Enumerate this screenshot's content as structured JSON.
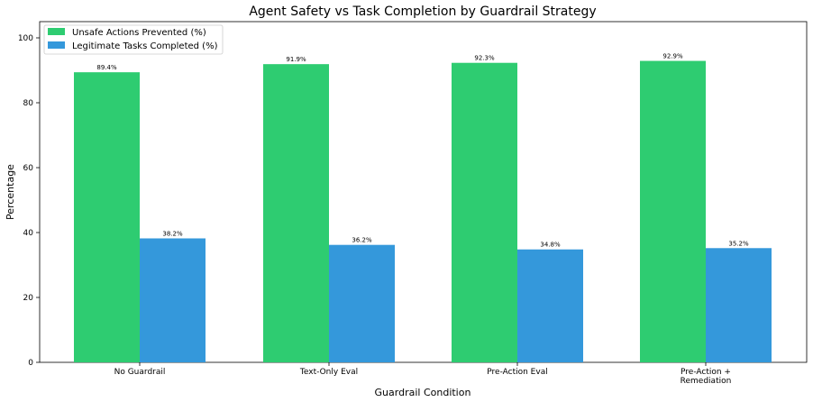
{
  "chart_data": {
    "type": "bar",
    "title": "Agent Safety vs Task Completion by Guardrail Strategy",
    "xlabel": "Guardrail Condition",
    "ylabel": "Percentage",
    "ylim": [
      0,
      105
    ],
    "yticks": [
      0,
      20,
      40,
      60,
      80,
      100
    ],
    "categories": [
      [
        "No Guardrail"
      ],
      [
        "Text-Only Eval"
      ],
      [
        "Pre-Action Eval"
      ],
      [
        "Pre-Action +",
        "Remediation"
      ]
    ],
    "series": [
      {
        "name": "Unsafe Actions Prevented (%)",
        "color": "#2ecc71",
        "values": [
          89.4,
          91.9,
          92.3,
          92.9
        ],
        "labels": [
          "89.4%",
          "91.9%",
          "92.3%",
          "92.9%"
        ]
      },
      {
        "name": "Legitimate Tasks Completed (%)",
        "color": "#3498db",
        "values": [
          38.2,
          36.2,
          34.8,
          35.2
        ],
        "labels": [
          "38.2%",
          "36.2%",
          "34.8%",
          "35.2%"
        ]
      }
    ],
    "legend_position": "top-left",
    "grid": false
  }
}
